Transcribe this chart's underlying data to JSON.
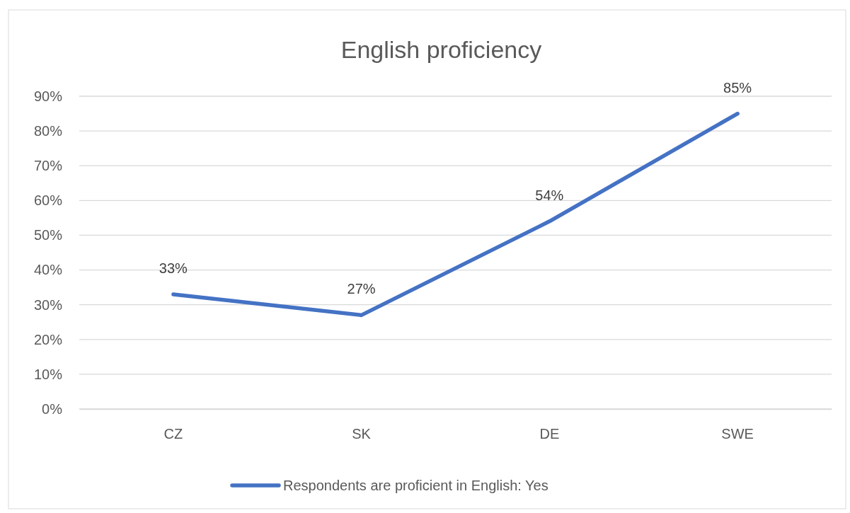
{
  "chart_data": {
    "type": "line",
    "title": "English proficiency",
    "categories": [
      "CZ",
      "SK",
      "DE",
      "SWE"
    ],
    "series": [
      {
        "name": "Respondents are proficient in English: Yes",
        "color": "#4472c4",
        "values": [
          33,
          27,
          54,
          85
        ],
        "value_labels": [
          "33%",
          "27%",
          "54%",
          "85%"
        ]
      }
    ],
    "ylim": [
      0,
      90
    ],
    "yticks": [
      {
        "value": 0,
        "label": "0%"
      },
      {
        "value": 10,
        "label": "10%"
      },
      {
        "value": 20,
        "label": "20%"
      },
      {
        "value": 30,
        "label": "30%"
      },
      {
        "value": 40,
        "label": "40%"
      },
      {
        "value": 50,
        "label": "50%"
      },
      {
        "value": 60,
        "label": "60%"
      },
      {
        "value": 70,
        "label": "70%"
      },
      {
        "value": 80,
        "label": "80%"
      },
      {
        "value": 90,
        "label": "90%"
      }
    ],
    "grid": "y",
    "legend": "bottom",
    "marker": "none",
    "line_style": "solid"
  }
}
